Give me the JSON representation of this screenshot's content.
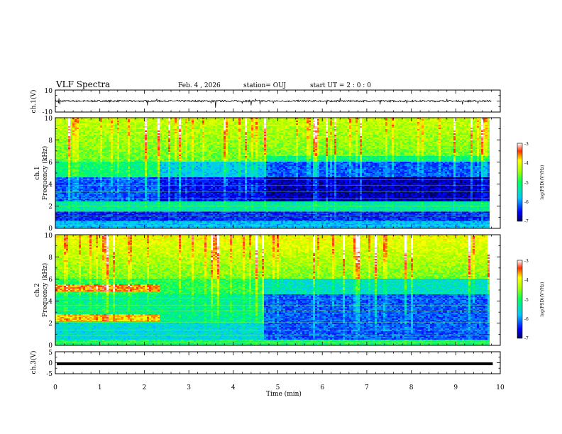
{
  "header": {
    "title": "VLF Spectra",
    "date": "Feb. 4 , 2026",
    "station": "station= OUJ",
    "start_time": "start UT =  2 : 0  : 0"
  },
  "chart_data": [
    {
      "type": "line",
      "panel": "ch1-waveform",
      "ylabel": "ch.1(V)",
      "ylim": [
        -10,
        10
      ],
      "yticks": [
        "10",
        "-10"
      ],
      "xlim": [
        0,
        10
      ],
      "baseline": 0,
      "spikes": [
        [
          0.07,
          -2
        ],
        [
          0.08,
          2.5
        ],
        [
          0.1,
          -3
        ],
        [
          2.07,
          -4
        ],
        [
          2.28,
          2
        ],
        [
          3.5,
          -2
        ],
        [
          3.6,
          -6
        ],
        [
          4.2,
          -2
        ],
        [
          4.4,
          -4
        ],
        [
          4.5,
          2
        ],
        [
          4.6,
          -3
        ],
        [
          4.9,
          -2
        ],
        [
          6.1,
          -3
        ],
        [
          6.4,
          3
        ],
        [
          7.3,
          -3
        ],
        [
          7.9,
          -2
        ],
        [
          8.8,
          2
        ],
        [
          9.15,
          -3
        ],
        [
          9.5,
          -2
        ]
      ]
    },
    {
      "type": "heatmap",
      "panel": "ch1-spectrogram",
      "ylabel": "ch.1\nFrequency  (kHz)",
      "ylabel_line1": "ch.1",
      "ylabel_line2": "Frequency  (kHz)",
      "ylim": [
        0,
        10
      ],
      "yticks": [
        "0",
        "2",
        "4",
        "6",
        "8",
        "10"
      ],
      "xlim": [
        0,
        9.8
      ],
      "colorbar": {
        "label": "log(PSD)(V²/Hz)",
        "range": [
          -7,
          -3
        ],
        "ticks": [
          "-3",
          "-4",
          "-5",
          "-6",
          "-7"
        ]
      },
      "notes": "Noise-band structure changes at ~2.35 min and ~4.7 min"
    },
    {
      "type": "heatmap",
      "panel": "ch2-spectrogram",
      "ylabel": "ch.2\nFrequency  (kHz)",
      "ylabel_line1": "ch.2",
      "ylabel_line2": "Frequency  (kHz)",
      "ylim": [
        0,
        10
      ],
      "yticks": [
        "0",
        "2",
        "4",
        "6",
        "8",
        "10"
      ],
      "xlim": [
        0,
        9.8
      ],
      "colorbar": {
        "label": "log(PSD)(V²/Hz)",
        "range": [
          -7,
          -3
        ],
        "ticks": [
          "-3",
          "-4",
          "-5",
          "-6",
          "-7"
        ]
      },
      "notes": "Strong bands near 2.5 and 5.2 kHz until ~2.35 min"
    },
    {
      "type": "line",
      "panel": "ch3-waveform",
      "ylabel": "ch.3(V)",
      "ylim": [
        -5,
        5
      ],
      "yticks": [
        "5",
        "0",
        "-5"
      ],
      "xlim": [
        0,
        10
      ],
      "xlabel": "Time  (min)",
      "xticks": [
        "0",
        "1",
        "2",
        "3",
        "4",
        "5",
        "6",
        "7",
        "8",
        "9",
        "10"
      ],
      "constant_value": -0.5
    }
  ]
}
